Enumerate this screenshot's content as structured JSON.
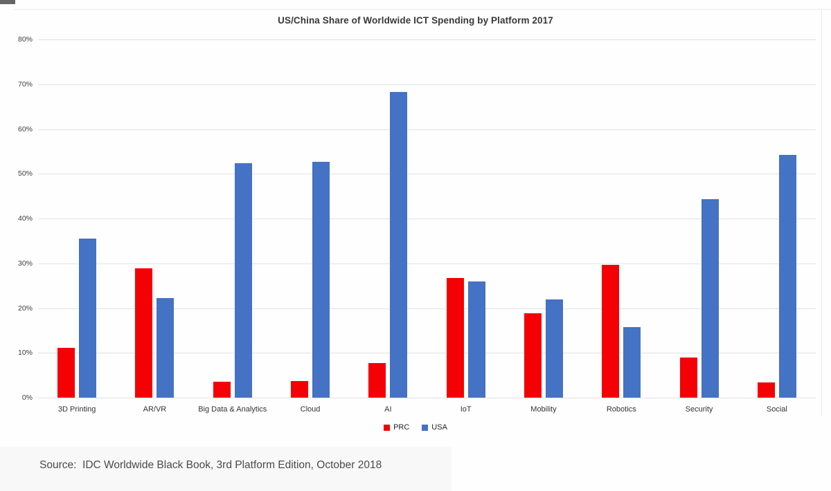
{
  "page": {
    "source_note": "Source:  IDC Worldwide Black Book, 3rd Platform Edition, October 2018"
  },
  "chart_data": {
    "type": "bar",
    "title": "US/China Share of Worldwide ICT Spending by Platform 2017",
    "categories": [
      "3D Printing",
      "AR/VR",
      "Big Data & Analytics",
      "Cloud",
      "AI",
      "IoT",
      "Mobility",
      "Robotics",
      "Security",
      "Social"
    ],
    "series": [
      {
        "name": "PRC",
        "color": "#f40105",
        "values": [
          11.1,
          28.9,
          3.5,
          3.7,
          7.7,
          26.7,
          18.9,
          29.7,
          9.0,
          3.4
        ]
      },
      {
        "name": "USA",
        "color": "#4472c4",
        "values": [
          35.5,
          22.2,
          52.4,
          52.7,
          68.3,
          26.0,
          22.0,
          15.8,
          44.3,
          54.2
        ]
      }
    ],
    "xlabel": "",
    "ylabel": "",
    "ylim": [
      0,
      80
    ],
    "yticks": [
      0,
      10,
      20,
      30,
      40,
      50,
      60,
      70,
      80
    ],
    "ytick_labels": [
      "0%",
      "10%",
      "20%",
      "30%",
      "40%",
      "50%",
      "60%",
      "70%",
      "80%"
    ],
    "grid": true,
    "legend_position": "bottom-center"
  }
}
